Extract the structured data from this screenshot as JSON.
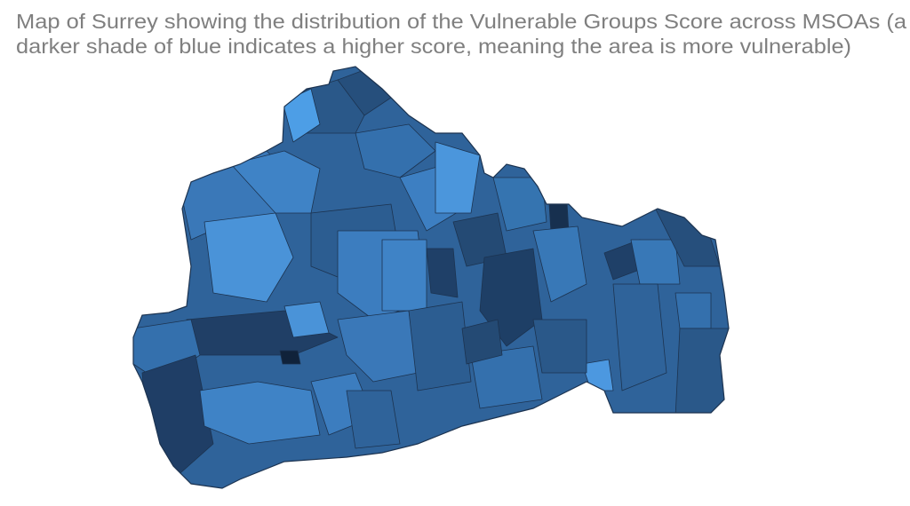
{
  "title": [
    "Map of Surrey showing the distribution of the Vulnerable Groups Score across MSOAs (a",
    "darker shade of blue indicates a higher score, meaning the area is more vulnerable)"
  ]
}
